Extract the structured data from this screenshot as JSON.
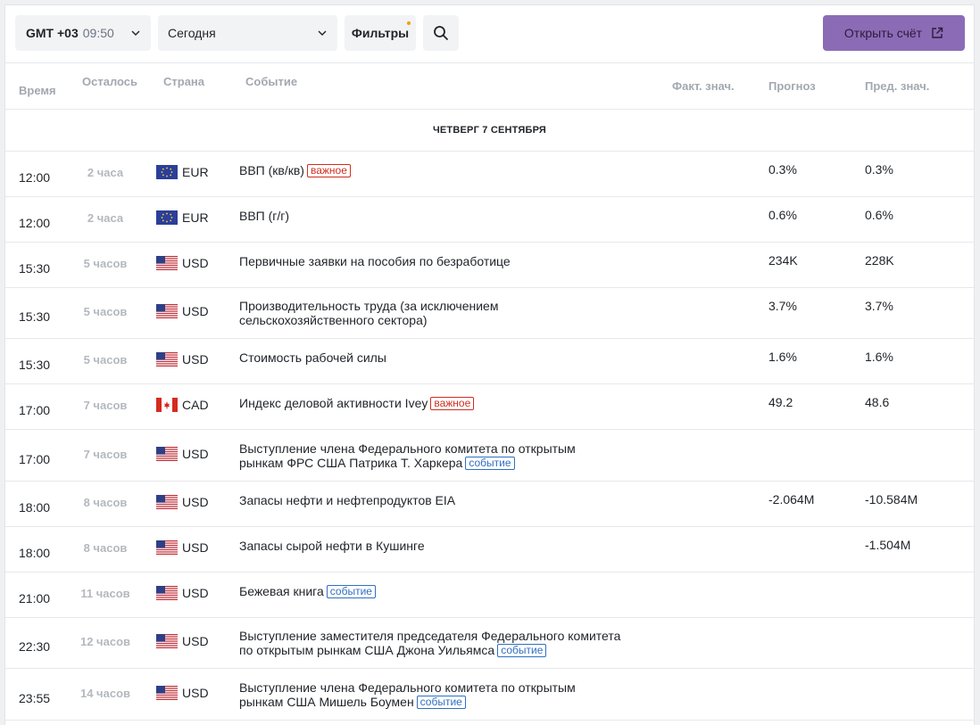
{
  "toolbar": {
    "timezone_gmt": "GMT +03",
    "timezone_time": "09:50",
    "date_value": "Сегодня",
    "filters_label": "Фильтры",
    "open_account_label": "Открыть счёт"
  },
  "columns": {
    "time": "Время",
    "left": "Осталось",
    "country": "Страна",
    "event": "Событие",
    "actual": "Факт. знач.",
    "forecast": "Прогноз",
    "previous": "Пред. знач."
  },
  "day_header": "ЧЕТВЕРГ 7 СЕНТЯБРЯ",
  "tags": {
    "important": "важное",
    "event": "событие"
  },
  "colors": {
    "accent_button": "#8c6bb6",
    "important_tag": "#d12e1e",
    "event_tag": "#2f6fc4",
    "filter_dot": "#f59e0b"
  },
  "events": [
    {
      "time": "12:00",
      "left": "2 часа",
      "flag": "eu",
      "currency": "EUR",
      "event": "ВВП (кв/кв)",
      "tag": "important",
      "actual": "",
      "forecast": "0.3%",
      "previous": "0.3%"
    },
    {
      "time": "12:00",
      "left": "2 часа",
      "flag": "eu",
      "currency": "EUR",
      "event": "ВВП (г/г)",
      "tag": "",
      "actual": "",
      "forecast": "0.6%",
      "previous": "0.6%"
    },
    {
      "time": "15:30",
      "left": "5 часов",
      "flag": "us",
      "currency": "USD",
      "event": "Первичные заявки на пособия по безработице",
      "tag": "",
      "actual": "",
      "forecast": "234K",
      "previous": "228K"
    },
    {
      "time": "15:30",
      "left": "5 часов",
      "flag": "us",
      "currency": "USD",
      "event": "Производительность труда (за исключением сельскохозяйственного сектора)",
      "tag": "",
      "actual": "",
      "forecast": "3.7%",
      "previous": "3.7%"
    },
    {
      "time": "15:30",
      "left": "5 часов",
      "flag": "us",
      "currency": "USD",
      "event": "Стоимость рабочей силы",
      "tag": "",
      "actual": "",
      "forecast": "1.6%",
      "previous": "1.6%"
    },
    {
      "time": "17:00",
      "left": "7 часов",
      "flag": "ca",
      "currency": "CAD",
      "event": "Индекс деловой активности Ivey",
      "tag": "important",
      "actual": "",
      "forecast": "49.2",
      "previous": "48.6"
    },
    {
      "time": "17:00",
      "left": "7 часов",
      "flag": "us",
      "currency": "USD",
      "event": "Выступление члена Федерального комитета по открытым рынкам ФРС США Патрика Т. Харкера",
      "tag": "event",
      "actual": "",
      "forecast": "",
      "previous": ""
    },
    {
      "time": "18:00",
      "left": "8 часов",
      "flag": "us",
      "currency": "USD",
      "event": "Запасы нефти и нефтепродуктов EIA",
      "tag": "",
      "actual": "",
      "forecast": "-2.064M",
      "previous": "-10.584M"
    },
    {
      "time": "18:00",
      "left": "8 часов",
      "flag": "us",
      "currency": "USD",
      "event": "Запасы сырой нефти в Кушинге",
      "tag": "",
      "actual": "",
      "forecast": "",
      "previous": "-1.504M"
    },
    {
      "time": "21:00",
      "left": "11 часов",
      "flag": "us",
      "currency": "USD",
      "event": "Бежевая книга",
      "tag": "event",
      "actual": "",
      "forecast": "",
      "previous": ""
    },
    {
      "time": "22:30",
      "left": "12 часов",
      "flag": "us",
      "currency": "USD",
      "event": "Выступление заместителя председателя Федерального комитета по открытым рынкам США Джона Уильямса",
      "tag": "event",
      "actual": "",
      "forecast": "",
      "previous": ""
    },
    {
      "time": "23:55",
      "left": "14 часов",
      "flag": "us",
      "currency": "USD",
      "event": "Выступление члена Федерального комитета по открытым рынкам США Мишель Боумен",
      "tag": "event",
      "actual": "",
      "forecast": "",
      "previous": ""
    }
  ]
}
